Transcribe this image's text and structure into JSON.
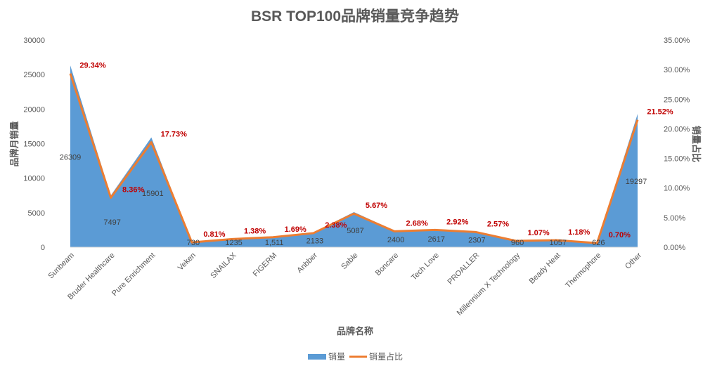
{
  "chart_data": {
    "type": "area",
    "title": "BSR TOP100品牌销量竞争趋势",
    "xlabel": "品牌名称",
    "ylabel": "品牌月销量",
    "y2label": "销量占比",
    "categories": [
      "Sunbeam",
      "Bruder Healthcare",
      "Pure Enrichment",
      "Veken",
      "SNAILAX",
      "FIGERM",
      "Anbber",
      "Sable",
      "Boncare",
      "Tech Love",
      "PROALLER",
      "Millennium X Technology",
      "Beady Heat",
      "Thermophore",
      "Other"
    ],
    "series": [
      {
        "name": "销量",
        "type": "area",
        "axis": "left",
        "color": "#5b9bd5",
        "values": [
          26309,
          7497,
          15901,
          730,
          1235,
          1511,
          2133,
          5087,
          2400,
          2617,
          2307,
          960,
          1057,
          626,
          19297
        ],
        "labels": [
          "26309",
          "7497",
          "15901",
          "730",
          "1235",
          "1,511",
          "2133",
          "5087",
          "2400",
          "2617",
          "2307",
          "960",
          "1057",
          "626",
          "19297"
        ]
      },
      {
        "name": "销量占比",
        "type": "line",
        "axis": "right",
        "color": "#ed7d31",
        "values": [
          29.34,
          8.36,
          17.73,
          0.81,
          1.38,
          1.69,
          2.38,
          5.67,
          2.68,
          2.92,
          2.57,
          1.07,
          1.18,
          0.7,
          21.52
        ],
        "labels": [
          "29.34%",
          "8.36%",
          "17.73%",
          "0.81%",
          "1.38%",
          "1.69%",
          "2.38%",
          "5.67%",
          "2.68%",
          "2.92%",
          "2.57%",
          "1.07%",
          "1.18%",
          "0.70%",
          "21.52%"
        ]
      }
    ],
    "ylim": [
      0,
      30000
    ],
    "yticks": [
      "0",
      "5000",
      "10000",
      "15000",
      "20000",
      "25000",
      "30000"
    ],
    "y2lim": [
      0,
      35
    ],
    "y2ticks": [
      "0.00%",
      "5.00%",
      "10.00%",
      "15.00%",
      "20.00%",
      "25.00%",
      "30.00%",
      "35.00%"
    ],
    "grid": false,
    "legend": "bottom",
    "label_color_line": "#c00000",
    "text_color": "#595959"
  }
}
